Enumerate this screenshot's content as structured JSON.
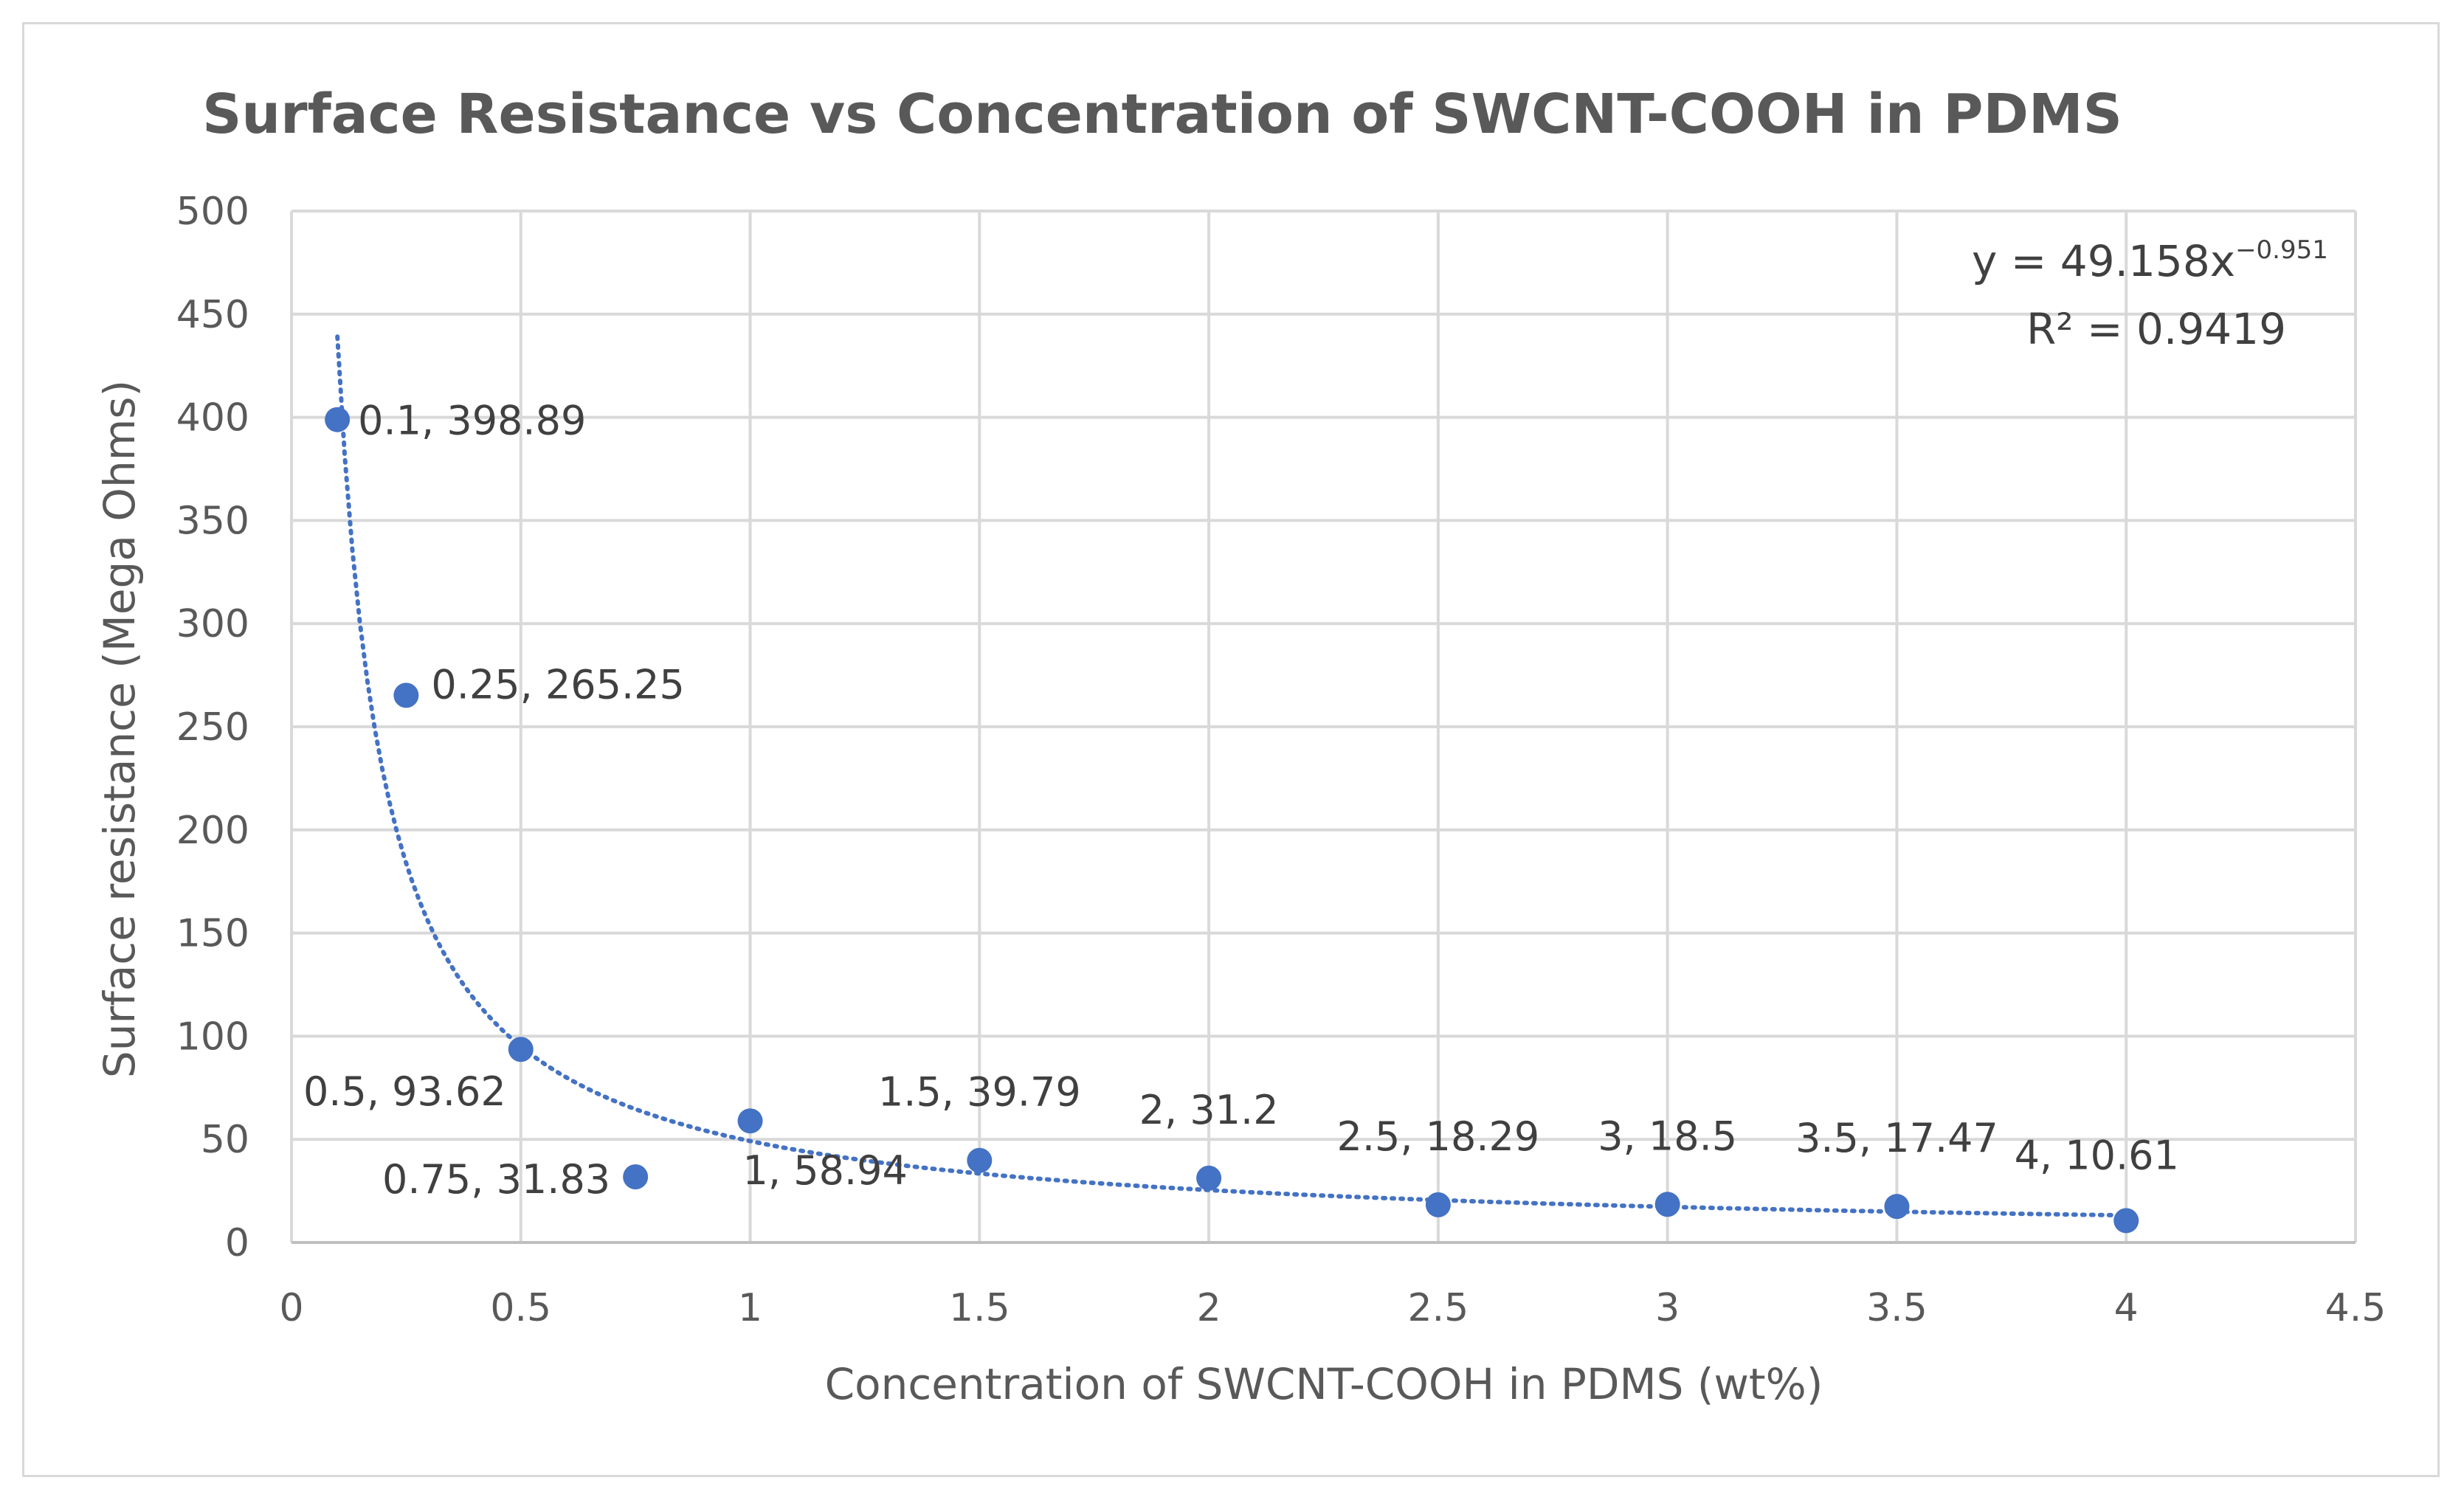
{
  "chart_data": {
    "type": "scatter",
    "title": "Surface Resistance vs Concentration of SWCNT-COOH in PDMS",
    "xlabel": "Concentration of SWCNT-COOH in PDMS (wt%)",
    "ylabel": "Surface resistance (Mega Ohms)",
    "xlim": [
      0,
      4.5
    ],
    "ylim": [
      0,
      500
    ],
    "x_ticks": [
      "0",
      "0.5",
      "1",
      "1.5",
      "2",
      "2.5",
      "3",
      "3.5",
      "4",
      "4.5"
    ],
    "y_ticks": [
      "0",
      "50",
      "100",
      "150",
      "200",
      "250",
      "300",
      "350",
      "400",
      "450",
      "500"
    ],
    "grid": true,
    "marker_color": "#4472c4",
    "series": [
      {
        "name": "Surface resistance",
        "points": [
          {
            "x": 0.1,
            "y": 398.89,
            "label": "0.1, 398.89"
          },
          {
            "x": 0.25,
            "y": 265.25,
            "label": "0.25, 265.25"
          },
          {
            "x": 0.5,
            "y": 93.62,
            "label": "0.5, 93.62"
          },
          {
            "x": 0.75,
            "y": 31.83,
            "label": "0.75, 31.83"
          },
          {
            "x": 1,
            "y": 58.94,
            "label": "1, 58.94"
          },
          {
            "x": 1.5,
            "y": 39.79,
            "label": "1.5, 39.79"
          },
          {
            "x": 2,
            "y": 31.2,
            "label": "2, 31.2"
          },
          {
            "x": 2.5,
            "y": 18.29,
            "label": "2.5, 18.29"
          },
          {
            "x": 3,
            "y": 18.5,
            "label": "3, 18.5"
          },
          {
            "x": 3.5,
            "y": 17.47,
            "label": "3.5, 17.47"
          },
          {
            "x": 4,
            "y": 10.61,
            "label": "4, 10.61"
          }
        ]
      }
    ],
    "trendline": {
      "type": "power",
      "coefficient": 49.158,
      "exponent": -0.951,
      "x_start": 0.1,
      "x_end": 4,
      "equation_text": "y = 49.158x",
      "equation_exponent": "−0.951",
      "r2_text": "R² = 0.9419"
    }
  }
}
